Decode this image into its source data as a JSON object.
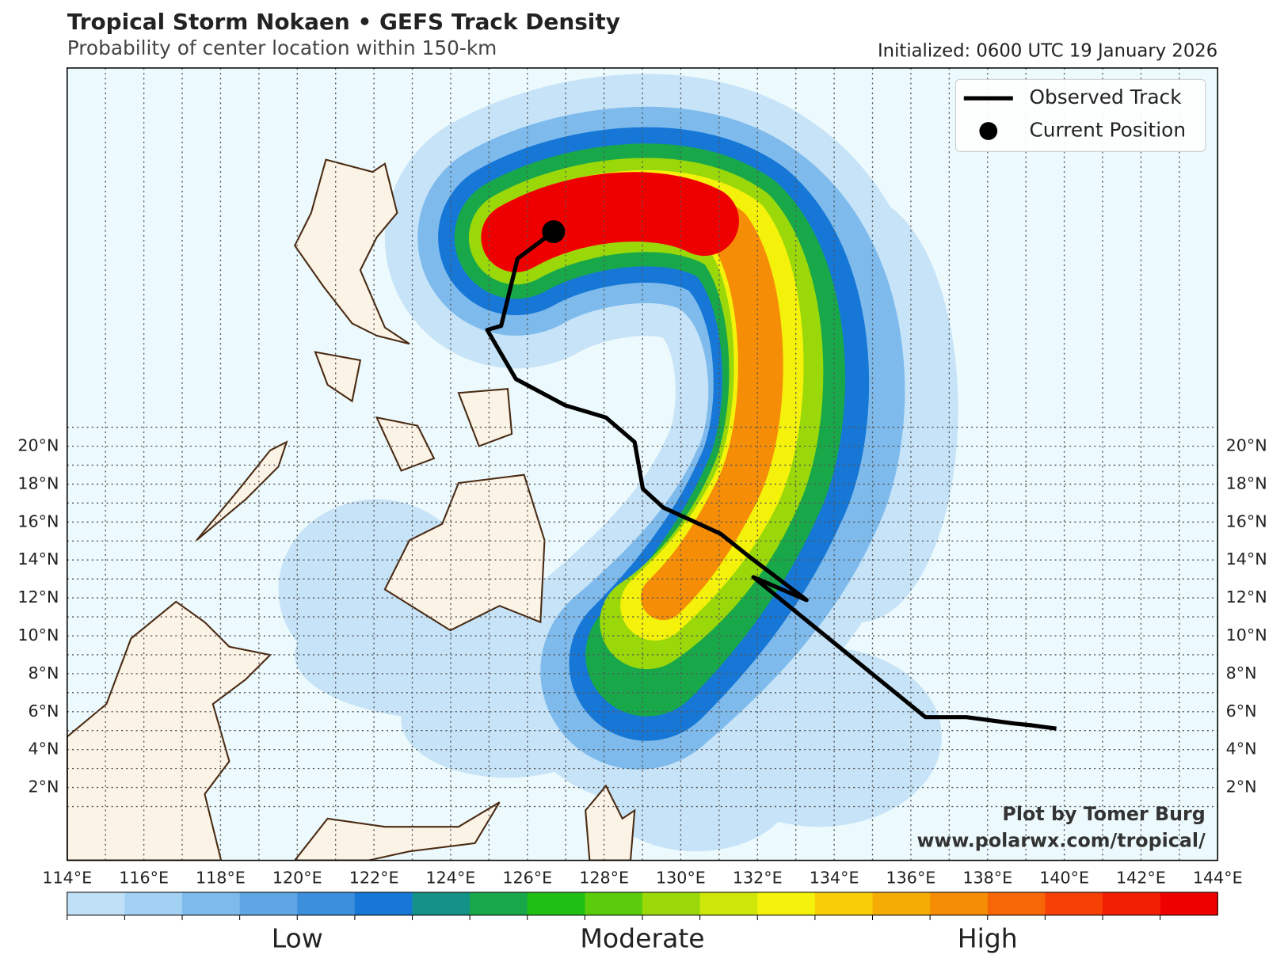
{
  "header": {
    "title": "Tropical Storm Nokaen • GEFS Track Density",
    "subtitle": "Probability of center location within 150-km",
    "initialized": "Initialized: 0600 UTC 19 January 2026"
  },
  "map": {
    "lon_labels": [
      "114°E",
      "116°E",
      "118°E",
      "120°E",
      "122°E",
      "124°E",
      "126°E",
      "128°E",
      "130°E",
      "132°E",
      "134°E",
      "136°E",
      "138°E",
      "140°E",
      "142°E",
      "144°E"
    ],
    "lat_labels": [
      "2°N",
      "4°N",
      "6°N",
      "8°N",
      "10°N",
      "12°N",
      "14°N",
      "16°N",
      "18°N",
      "20°N"
    ]
  },
  "legend": [
    "Observed Track",
    "Current Position"
  ],
  "credit": [
    "Plot by Tomer Burg",
    "www.polarwx.com/tropical/"
  ],
  "colorbar": {
    "labels": [
      "Low",
      "Moderate",
      "High"
    ],
    "colors": [
      "#bfe0f7",
      "#a3d1f3",
      "#7ebbec",
      "#5ea6e4",
      "#3b8fdc",
      "#1677d6",
      "#149287",
      "#18a84a",
      "#1fbf14",
      "#5bcc0c",
      "#9ad80a",
      "#cfe60a",
      "#f4f20a",
      "#f7cd07",
      "#f5ad05",
      "#f68d07",
      "#f76708",
      "#f64006",
      "#f31f04",
      "#ef0000"
    ]
  }
}
